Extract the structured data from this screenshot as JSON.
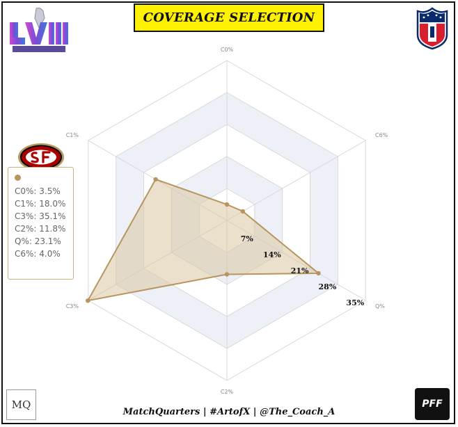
{
  "title": "COVERAGE SELECTION",
  "footer": "MatchQuarters | #ArtofX | @The_Coach_A",
  "logos": {
    "super_bowl": "LVIII SUPER BOWL",
    "nfl": "NFL",
    "team": "SF",
    "matchquarters": "MQ",
    "pff": "PFF"
  },
  "legend": {
    "items": [
      "C0%: 3.5%",
      "C1%: 18.0%",
      "C3%: 35.1%",
      "C2%: 11.8%",
      "Q%: 23.1%",
      "C6%: 4.0%"
    ]
  },
  "colors": {
    "series_fill": "#d8c6a0",
    "series_stroke": "#b8955f",
    "band": "#eef0f8",
    "grid": "#d8d8d8",
    "title_bg": "#fff200"
  },
  "chart_data": {
    "type": "radar",
    "title": "COVERAGE SELECTION",
    "axes": [
      "C0%",
      "C6%",
      "Q%",
      "C2%",
      "C3%",
      "C1%"
    ],
    "values": [
      3.5,
      4.0,
      23.1,
      11.8,
      35.1,
      18.0
    ],
    "rmax": 35,
    "ticks": [
      7,
      14,
      21,
      28,
      35
    ],
    "tick_labels": [
      "7%",
      "14%",
      "21%",
      "28%",
      "35%"
    ],
    "grid": true
  }
}
